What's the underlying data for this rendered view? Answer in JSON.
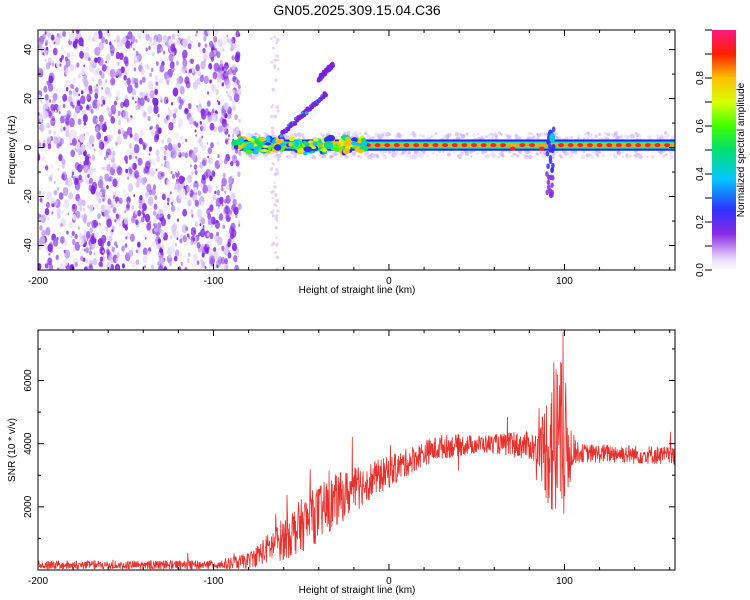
{
  "title": "GN05.2025.309.15.04.C36",
  "chart_data": [
    {
      "type": "heatmap",
      "name": "spectrogram",
      "xlabel": "Height of straight line (km)",
      "ylabel": "Frequency (Hz)",
      "xlim": [
        -200,
        163
      ],
      "ylim": [
        -50,
        48
      ],
      "xticks": [
        -200,
        -100,
        0,
        100
      ],
      "yticks": [
        -40,
        -20,
        0,
        20,
        40
      ],
      "colorbar": {
        "label": "Normalized spectral amplitude",
        "range": [
          0,
          1
        ],
        "ticks": [
          0.0,
          0.2,
          0.4,
          0.6,
          0.8
        ],
        "stops": [
          "#ffffff",
          "#c9a8f4",
          "#8a2be2",
          "#3030ff",
          "#00c8ff",
          "#00e070",
          "#40ff00",
          "#d8ff00",
          "#ffc000",
          "#ff2000",
          "#ff1880"
        ]
      },
      "noise_region_end_x": -85,
      "ridge_center_freq": 1,
      "branches": [
        {
          "x_start": -62,
          "x_end": -36,
          "f_start": 5,
          "f_end": 22
        },
        {
          "x_start": -40,
          "x_end": -32,
          "f_start": 28,
          "f_end": 34
        }
      ],
      "disturbance": {
        "x": 92,
        "f_min": -20,
        "f_max": 10
      }
    },
    {
      "type": "line",
      "name": "snr",
      "xlabel": "Height of straight line (km)",
      "ylabel": "SNR (10 * v/v)",
      "xlim": [
        -200,
        163
      ],
      "ylim": [
        0,
        7600
      ],
      "xticks": [
        -200,
        -100,
        0,
        100
      ],
      "yticks": [
        2000,
        4000,
        6000
      ],
      "series": [
        {
          "name": "SNR",
          "color": "#e8302c",
          "x": [
            -200,
            -180,
            -160,
            -140,
            -120,
            -100,
            -90,
            -80,
            -70,
            -60,
            -50,
            -40,
            -30,
            -20,
            -10,
            0,
            10,
            20,
            30,
            40,
            50,
            60,
            70,
            80,
            85,
            90,
            95,
            100,
            105,
            110,
            120,
            130,
            140,
            150,
            163
          ],
          "y": [
            150,
            150,
            150,
            150,
            150,
            170,
            200,
            300,
            650,
            1000,
            1400,
            1800,
            2200,
            2550,
            2850,
            3100,
            3400,
            3700,
            3900,
            3950,
            3980,
            4000,
            3950,
            3950,
            3800,
            3900,
            4100,
            3900,
            3750,
            3700,
            3680,
            3700,
            3650,
            3650,
            3600
          ],
          "amp": [
            150,
            150,
            150,
            150,
            150,
            150,
            200,
            250,
            450,
            700,
            850,
            900,
            850,
            700,
            600,
            500,
            450,
            400,
            400,
            350,
            300,
            300,
            400,
            450,
            600,
            1800,
            3200,
            2400,
            400,
            300,
            300,
            300,
            300,
            300,
            300
          ]
        }
      ]
    }
  ]
}
